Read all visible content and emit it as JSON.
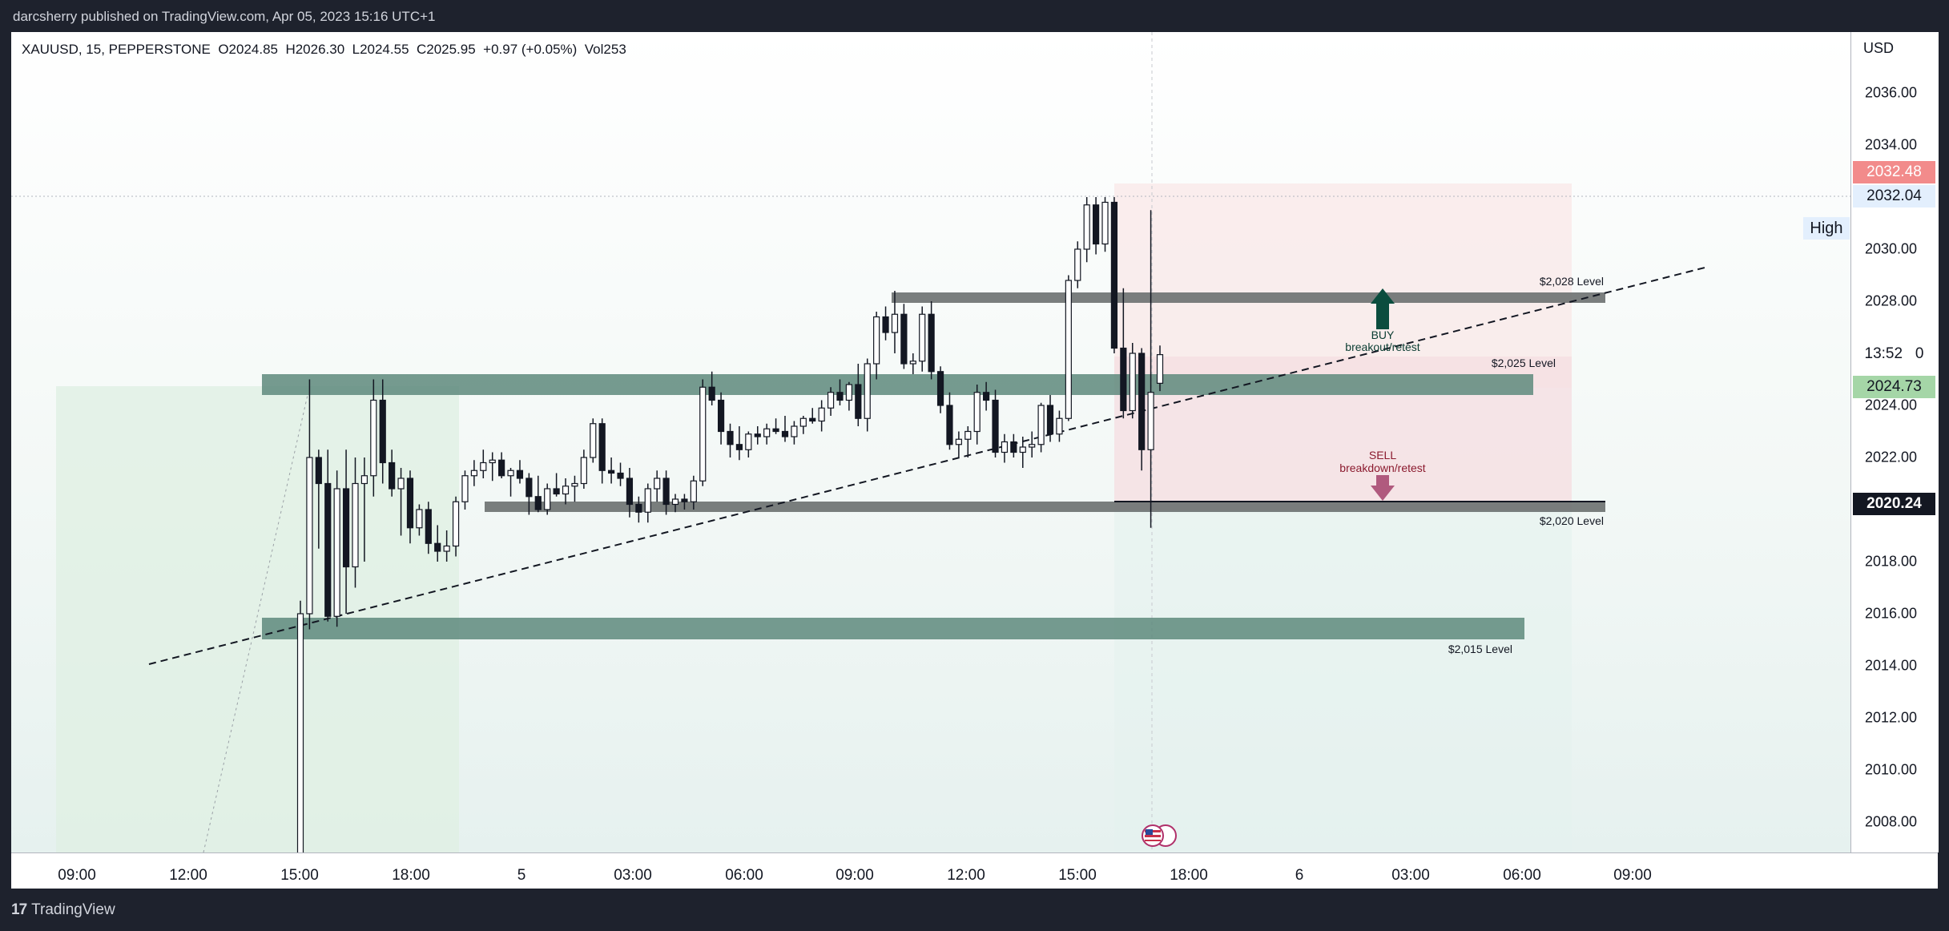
{
  "header": {
    "published": "darcsherry published on TradingView.com, Apr 05, 2023 15:16 UTC+1"
  },
  "legend": "XAUUSD, 15, PEPPERSTONE  O2024.85  H2026.30  L2024.55  C2025.95  +0.97 (+0.05%)  Vol253",
  "price_axis": {
    "currency": "USD",
    "ticks": [
      "2036.00",
      "2034.00",
      "2032.00",
      "2030.00",
      "2028.00",
      "2026.00",
      "2024.00",
      "2022.00",
      "2020.00",
      "2018.00",
      "2016.00",
      "2014.00",
      "2012.00",
      "2010.00",
      "2008.00"
    ],
    "labels": {
      "top": "2032.48",
      "high_value": "2032.04",
      "high_tag": "High",
      "countdown": "13:52",
      "countdown_tail": "0",
      "current": "2024.73",
      "crosshair": "2020.24"
    }
  },
  "time_axis": {
    "labels": [
      "09:00",
      "12:00",
      "15:00",
      "18:00",
      "5",
      "03:00",
      "06:00",
      "09:00",
      "12:00",
      "15:00",
      "18:00",
      "6",
      "03:00",
      "06:00",
      "09:00"
    ]
  },
  "annotations": {
    "level_2028": "$2,028 Level",
    "level_2025": "$2,025 Level",
    "level_2020": "$2,020 Level",
    "level_2015": "$2,015 Level",
    "buy_title": "BUY",
    "buy_sub": "breakout/retest",
    "sell_title": "SELL",
    "sell_sub": "breakdown/retest"
  },
  "colors": {
    "zone": "#5e8a7d",
    "level_line": "#6b7070",
    "buy_arrow": "#0b4d3e",
    "sell_arrow": "#b05a7e",
    "sell_text": "#8b1a2e",
    "short_box": "#f8e4e4",
    "long_box": "#e0f0e4",
    "current_label": "#a5d6a7",
    "top_label": "#f28b8b",
    "crosshair_label": "#131722"
  },
  "footer": {
    "brand": "TradingView"
  },
  "chart_data": {
    "type": "candlestick",
    "symbol": "XAUUSD",
    "interval": "15",
    "broker": "PEPPERSTONE",
    "ylim": [
      2006.5,
      2037.8
    ],
    "levels": [
      2028.0,
      2025.0,
      2020.0,
      2015.0
    ],
    "candles": [
      {
        "o": 2006.5,
        "h": 2016.5,
        "l": 2006.5,
        "c": 2016.0
      },
      {
        "o": 2016.0,
        "h": 2025.0,
        "l": 2015.4,
        "c": 2022.0
      },
      {
        "o": 2022.0,
        "h": 2022.3,
        "l": 2018.5,
        "c": 2021.0
      },
      {
        "o": 2021.0,
        "h": 2022.3,
        "l": 2015.7,
        "c": 2015.9
      },
      {
        "o": 2015.9,
        "h": 2021.5,
        "l": 2015.5,
        "c": 2020.8
      },
      {
        "o": 2020.8,
        "h": 2022.3,
        "l": 2016.0,
        "c": 2017.8
      },
      {
        "o": 2017.8,
        "h": 2022.0,
        "l": 2017.0,
        "c": 2021.0
      },
      {
        "o": 2021.0,
        "h": 2022.0,
        "l": 2018.0,
        "c": 2021.3
      },
      {
        "o": 2021.3,
        "h": 2025.0,
        "l": 2020.5,
        "c": 2024.2
      },
      {
        "o": 2024.2,
        "h": 2025.0,
        "l": 2021.0,
        "c": 2021.8
      },
      {
        "o": 2021.8,
        "h": 2022.3,
        "l": 2020.5,
        "c": 2020.8
      },
      {
        "o": 2020.8,
        "h": 2021.6,
        "l": 2019.0,
        "c": 2021.2
      },
      {
        "o": 2021.2,
        "h": 2021.5,
        "l": 2018.7,
        "c": 2019.3
      },
      {
        "o": 2019.3,
        "h": 2020.2,
        "l": 2019.0,
        "c": 2020.0
      },
      {
        "o": 2020.0,
        "h": 2020.3,
        "l": 2018.3,
        "c": 2018.7
      },
      {
        "o": 2018.7,
        "h": 2019.4,
        "l": 2018.0,
        "c": 2018.4
      },
      {
        "o": 2018.4,
        "h": 2019.2,
        "l": 2018.0,
        "c": 2018.6
      },
      {
        "o": 2018.6,
        "h": 2020.5,
        "l": 2018.2,
        "c": 2020.3
      },
      {
        "o": 2020.3,
        "h": 2021.5,
        "l": 2020.0,
        "c": 2021.3
      },
      {
        "o": 2021.3,
        "h": 2021.9,
        "l": 2020.9,
        "c": 2021.5
      },
      {
        "o": 2021.5,
        "h": 2022.3,
        "l": 2021.2,
        "c": 2021.8
      },
      {
        "o": 2021.8,
        "h": 2022.2,
        "l": 2021.1,
        "c": 2021.9
      },
      {
        "o": 2021.9,
        "h": 2022.2,
        "l": 2021.2,
        "c": 2021.3
      },
      {
        "o": 2021.3,
        "h": 2021.6,
        "l": 2020.5,
        "c": 2021.5
      },
      {
        "o": 2021.5,
        "h": 2021.9,
        "l": 2021.0,
        "c": 2021.2
      },
      {
        "o": 2021.2,
        "h": 2021.4,
        "l": 2019.8,
        "c": 2020.5
      },
      {
        "o": 2020.5,
        "h": 2021.3,
        "l": 2019.9,
        "c": 2020.0
      },
      {
        "o": 2020.0,
        "h": 2021.0,
        "l": 2019.8,
        "c": 2020.8
      },
      {
        "o": 2020.8,
        "h": 2021.4,
        "l": 2020.5,
        "c": 2020.6
      },
      {
        "o": 2020.6,
        "h": 2021.2,
        "l": 2020.2,
        "c": 2020.9
      },
      {
        "o": 2020.9,
        "h": 2021.3,
        "l": 2020.3,
        "c": 2021.0
      },
      {
        "o": 2021.0,
        "h": 2022.3,
        "l": 2020.8,
        "c": 2022.0
      },
      {
        "o": 2022.0,
        "h": 2023.5,
        "l": 2021.8,
        "c": 2023.3
      },
      {
        "o": 2023.3,
        "h": 2023.5,
        "l": 2021.0,
        "c": 2021.5
      },
      {
        "o": 2021.5,
        "h": 2022.0,
        "l": 2021.0,
        "c": 2021.4
      },
      {
        "o": 2021.4,
        "h": 2021.8,
        "l": 2020.9,
        "c": 2021.2
      },
      {
        "o": 2021.2,
        "h": 2021.6,
        "l": 2019.7,
        "c": 2020.2
      },
      {
        "o": 2020.2,
        "h": 2020.5,
        "l": 2019.5,
        "c": 2019.9
      },
      {
        "o": 2019.9,
        "h": 2021.0,
        "l": 2019.5,
        "c": 2020.8
      },
      {
        "o": 2020.8,
        "h": 2021.5,
        "l": 2020.3,
        "c": 2021.2
      },
      {
        "o": 2021.2,
        "h": 2021.5,
        "l": 2019.8,
        "c": 2020.2
      },
      {
        "o": 2020.2,
        "h": 2020.6,
        "l": 2019.9,
        "c": 2020.4
      },
      {
        "o": 2020.4,
        "h": 2020.6,
        "l": 2020.0,
        "c": 2020.3
      },
      {
        "o": 2020.3,
        "h": 2021.3,
        "l": 2020.0,
        "c": 2021.1
      },
      {
        "o": 2021.1,
        "h": 2025.0,
        "l": 2020.9,
        "c": 2024.7
      },
      {
        "o": 2024.7,
        "h": 2025.3,
        "l": 2024.0,
        "c": 2024.2
      },
      {
        "o": 2024.2,
        "h": 2024.5,
        "l": 2022.5,
        "c": 2023.0
      },
      {
        "o": 2023.0,
        "h": 2023.3,
        "l": 2022.0,
        "c": 2022.5
      },
      {
        "o": 2022.5,
        "h": 2023.2,
        "l": 2021.9,
        "c": 2022.3
      },
      {
        "o": 2022.3,
        "h": 2023.0,
        "l": 2022.0,
        "c": 2022.9
      },
      {
        "o": 2022.9,
        "h": 2023.2,
        "l": 2022.5,
        "c": 2022.8
      },
      {
        "o": 2022.8,
        "h": 2023.3,
        "l": 2022.5,
        "c": 2023.1
      },
      {
        "o": 2023.1,
        "h": 2023.5,
        "l": 2022.9,
        "c": 2023.0
      },
      {
        "o": 2023.0,
        "h": 2023.6,
        "l": 2022.6,
        "c": 2022.8
      },
      {
        "o": 2022.8,
        "h": 2023.4,
        "l": 2022.5,
        "c": 2023.2
      },
      {
        "o": 2023.2,
        "h": 2023.6,
        "l": 2022.9,
        "c": 2023.5
      },
      {
        "o": 2023.5,
        "h": 2023.9,
        "l": 2023.3,
        "c": 2023.4
      },
      {
        "o": 2023.4,
        "h": 2024.2,
        "l": 2023.0,
        "c": 2023.9
      },
      {
        "o": 2023.9,
        "h": 2024.7,
        "l": 2023.6,
        "c": 2024.5
      },
      {
        "o": 2024.5,
        "h": 2025.0,
        "l": 2024.0,
        "c": 2024.2
      },
      {
        "o": 2024.2,
        "h": 2024.9,
        "l": 2023.8,
        "c": 2024.8
      },
      {
        "o": 2024.8,
        "h": 2025.6,
        "l": 2023.2,
        "c": 2023.5
      },
      {
        "o": 2023.5,
        "h": 2025.8,
        "l": 2023.0,
        "c": 2025.6
      },
      {
        "o": 2025.6,
        "h": 2027.6,
        "l": 2025.0,
        "c": 2027.4
      },
      {
        "o": 2027.4,
        "h": 2027.8,
        "l": 2026.5,
        "c": 2026.8
      },
      {
        "o": 2026.8,
        "h": 2028.4,
        "l": 2026.0,
        "c": 2027.5
      },
      {
        "o": 2027.5,
        "h": 2027.9,
        "l": 2025.4,
        "c": 2025.6
      },
      {
        "o": 2025.6,
        "h": 2026.0,
        "l": 2025.2,
        "c": 2025.7
      },
      {
        "o": 2025.7,
        "h": 2027.8,
        "l": 2025.3,
        "c": 2027.5
      },
      {
        "o": 2027.5,
        "h": 2028.0,
        "l": 2025.0,
        "c": 2025.3
      },
      {
        "o": 2025.3,
        "h": 2025.5,
        "l": 2023.7,
        "c": 2024.0
      },
      {
        "o": 2024.0,
        "h": 2024.5,
        "l": 2022.3,
        "c": 2022.5
      },
      {
        "o": 2022.5,
        "h": 2023.0,
        "l": 2022.0,
        "c": 2022.7
      },
      {
        "o": 2022.7,
        "h": 2023.2,
        "l": 2022.0,
        "c": 2023.0
      },
      {
        "o": 2023.0,
        "h": 2024.8,
        "l": 2022.5,
        "c": 2024.5
      },
      {
        "o": 2024.5,
        "h": 2024.9,
        "l": 2023.8,
        "c": 2024.2
      },
      {
        "o": 2024.2,
        "h": 2024.6,
        "l": 2022.0,
        "c": 2022.2
      },
      {
        "o": 2022.2,
        "h": 2022.9,
        "l": 2021.8,
        "c": 2022.6
      },
      {
        "o": 2022.6,
        "h": 2022.9,
        "l": 2022.0,
        "c": 2022.2
      },
      {
        "o": 2022.2,
        "h": 2022.8,
        "l": 2021.6,
        "c": 2022.4
      },
      {
        "o": 2022.4,
        "h": 2023.0,
        "l": 2022.0,
        "c": 2022.5
      },
      {
        "o": 2022.5,
        "h": 2024.1,
        "l": 2022.2,
        "c": 2024.0
      },
      {
        "o": 2024.0,
        "h": 2024.4,
        "l": 2022.6,
        "c": 2022.9
      },
      {
        "o": 2022.9,
        "h": 2023.8,
        "l": 2022.6,
        "c": 2023.5
      },
      {
        "o": 2023.5,
        "h": 2029.0,
        "l": 2023.4,
        "c": 2028.8
      },
      {
        "o": 2028.8,
        "h": 2030.3,
        "l": 2028.5,
        "c": 2030.0
      },
      {
        "o": 2030.0,
        "h": 2032.0,
        "l": 2029.5,
        "c": 2031.7
      },
      {
        "o": 2031.7,
        "h": 2032.0,
        "l": 2029.8,
        "c": 2030.2
      },
      {
        "o": 2030.2,
        "h": 2032.0,
        "l": 2029.9,
        "c": 2031.8
      },
      {
        "o": 2031.8,
        "h": 2032.0,
        "l": 2026.0,
        "c": 2026.2
      },
      {
        "o": 2026.2,
        "h": 2028.5,
        "l": 2023.5,
        "c": 2023.8
      },
      {
        "o": 2023.8,
        "h": 2026.4,
        "l": 2023.5,
        "c": 2026.0
      },
      {
        "o": 2026.0,
        "h": 2026.2,
        "l": 2021.5,
        "c": 2022.3
      },
      {
        "o": 2022.3,
        "h": 2031.5,
        "l": 2019.3,
        "c": 2024.5
      },
      {
        "o": 2024.85,
        "h": 2026.3,
        "l": 2024.55,
        "c": 2025.95
      }
    ]
  }
}
